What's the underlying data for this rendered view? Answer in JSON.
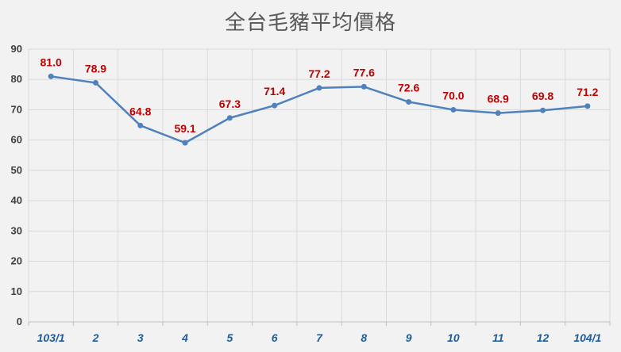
{
  "chart_data": {
    "type": "line",
    "title": "全台毛豬平均價格",
    "xlabel": "",
    "ylabel": "",
    "categories": [
      "103/1",
      "2",
      "3",
      "4",
      "5",
      "6",
      "7",
      "8",
      "9",
      "10",
      "11",
      "12",
      "104/1"
    ],
    "series": [
      {
        "values": [
          81.0,
          78.9,
          64.8,
          59.1,
          67.3,
          71.4,
          77.2,
          77.6,
          72.6,
          70.0,
          68.9,
          69.8,
          71.2
        ]
      }
    ],
    "data_labels": [
      "81.0",
      "78.9",
      "64.8",
      "59.1",
      "67.3",
      "71.4",
      "77.2",
      "77.6",
      "72.6",
      "70.0",
      "68.9",
      "69.8",
      "71.2"
    ],
    "ylim": [
      0,
      90
    ],
    "yticks": [
      0,
      10,
      20,
      30,
      40,
      50,
      60,
      70,
      80,
      90
    ],
    "grid": "vertical and horizontal",
    "legend": "none",
    "colors": {
      "line": "#4f81bd",
      "data_label": "#c00000",
      "x_tick_label": "#1f5c99",
      "grid": "#d9d9d9",
      "background": "#f2f2f2"
    }
  }
}
